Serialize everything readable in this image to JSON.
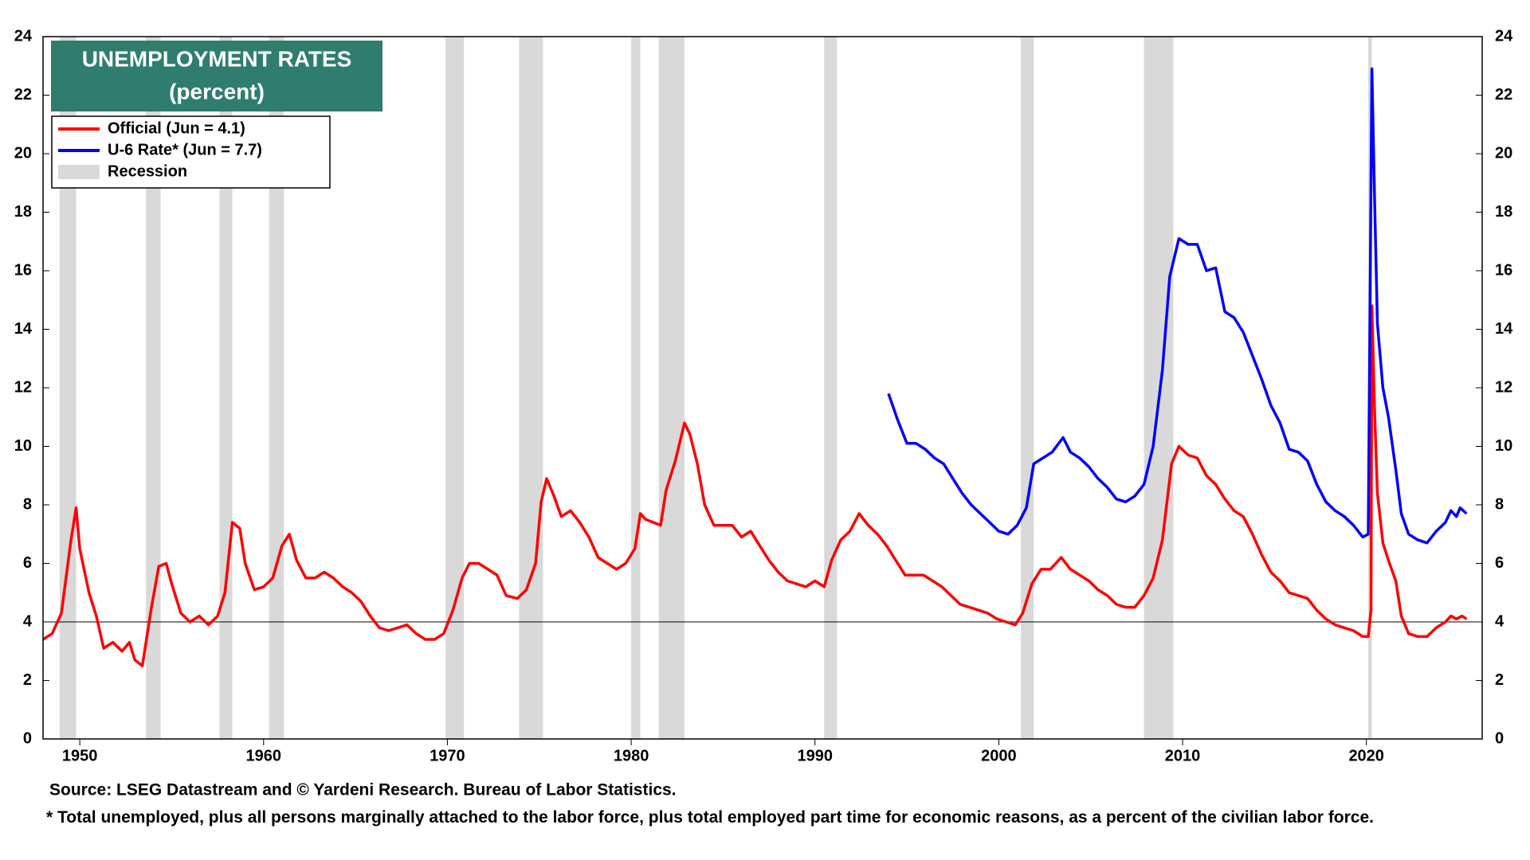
{
  "chart_data": {
    "type": "line",
    "title": "UNEMPLOYMENT RATES",
    "subtitle": "(percent)",
    "source": "Source: LSEG Datastream and © Yardeni Research. Bureau of Labor Statistics.",
    "footnote": "* Total unemployed, plus all persons marginally attached to the labor force, plus total employed part time for economic reasons, as a percent of the civilian labor force.",
    "xlim": [
      1948,
      2026.3
    ],
    "xticks": [
      1950,
      1960,
      1970,
      1980,
      1990,
      2000,
      2010,
      2020
    ],
    "ylim": [
      0,
      24
    ],
    "yticks": [
      0,
      2,
      4,
      6,
      8,
      10,
      12,
      14,
      16,
      18,
      20,
      22,
      24
    ],
    "reference_line": 4,
    "recession_label": "Recession",
    "recession_color": "#d9d9d9",
    "recessions": [
      [
        1948.9,
        1949.8
      ],
      [
        1953.6,
        1954.4
      ],
      [
        1957.6,
        1958.3
      ],
      [
        1960.3,
        1961.1
      ],
      [
        1969.9,
        1970.9
      ],
      [
        1973.9,
        1975.2
      ],
      [
        1980.0,
        1980.5
      ],
      [
        1981.5,
        1982.9
      ],
      [
        1990.5,
        1991.2
      ],
      [
        2001.2,
        2001.9
      ],
      [
        2007.9,
        2009.5
      ],
      [
        2020.1,
        2020.3
      ]
    ],
    "series": [
      {
        "name": "Official (Jun = 4.1)",
        "color": "#ff0000",
        "x": [
          1948.0,
          1948.5,
          1949.0,
          1949.5,
          1949.8,
          1950.0,
          1950.5,
          1950.9,
          1951.3,
          1951.8,
          1952.3,
          1952.7,
          1953.0,
          1953.4,
          1953.9,
          1954.3,
          1954.7,
          1955.0,
          1955.5,
          1956.0,
          1956.5,
          1957.0,
          1957.5,
          1957.9,
          1958.3,
          1958.7,
          1959.0,
          1959.5,
          1960.0,
          1960.5,
          1961.0,
          1961.4,
          1961.8,
          1962.3,
          1962.8,
          1963.3,
          1963.8,
          1964.3,
          1964.8,
          1965.3,
          1965.8,
          1966.3,
          1966.8,
          1967.3,
          1967.8,
          1968.3,
          1968.8,
          1969.3,
          1969.8,
          1970.3,
          1970.8,
          1971.2,
          1971.7,
          1972.2,
          1972.7,
          1973.2,
          1973.8,
          1974.3,
          1974.8,
          1975.1,
          1975.4,
          1975.8,
          1976.2,
          1976.7,
          1977.2,
          1977.7,
          1978.2,
          1978.7,
          1979.2,
          1979.7,
          1980.2,
          1980.5,
          1980.8,
          1981.2,
          1981.6,
          1981.9,
          1982.4,
          1982.9,
          1983.2,
          1983.6,
          1984.0,
          1984.5,
          1985.0,
          1985.5,
          1986.0,
          1986.5,
          1987.0,
          1987.5,
          1988.0,
          1988.5,
          1989.0,
          1989.5,
          1990.0,
          1990.5,
          1990.9,
          1991.4,
          1991.9,
          1992.4,
          1992.9,
          1993.4,
          1993.9,
          1994.4,
          1994.9,
          1995.4,
          1995.9,
          1996.4,
          1996.9,
          1997.4,
          1997.9,
          1998.4,
          1998.9,
          1999.4,
          1999.9,
          2000.4,
          2000.9,
          2001.3,
          2001.8,
          2002.3,
          2002.8,
          2003.4,
          2003.9,
          2004.4,
          2004.9,
          2005.4,
          2005.9,
          2006.4,
          2006.9,
          2007.4,
          2007.9,
          2008.4,
          2008.9,
          2009.4,
          2009.8,
          2010.3,
          2010.8,
          2011.3,
          2011.8,
          2012.3,
          2012.8,
          2013.3,
          2013.8,
          2014.3,
          2014.8,
          2015.3,
          2015.8,
          2016.3,
          2016.8,
          2017.3,
          2017.8,
          2018.3,
          2018.8,
          2019.3,
          2019.8,
          2020.1,
          2020.25,
          2020.3,
          2020.45,
          2020.6,
          2020.9,
          2021.2,
          2021.6,
          2021.9,
          2022.3,
          2022.8,
          2023.3,
          2023.8,
          2024.3,
          2024.6,
          2024.9,
          2025.2,
          2025.45
        ],
        "values": [
          3.4,
          3.6,
          4.3,
          6.7,
          7.9,
          6.5,
          5.0,
          4.2,
          3.1,
          3.3,
          3.0,
          3.3,
          2.7,
          2.5,
          4.5,
          5.9,
          6.0,
          5.3,
          4.3,
          4.0,
          4.2,
          3.9,
          4.2,
          5.0,
          7.4,
          7.2,
          6.0,
          5.1,
          5.2,
          5.5,
          6.6,
          7.0,
          6.1,
          5.5,
          5.5,
          5.7,
          5.5,
          5.2,
          5.0,
          4.7,
          4.2,
          3.8,
          3.7,
          3.8,
          3.9,
          3.6,
          3.4,
          3.4,
          3.6,
          4.4,
          5.5,
          6.0,
          6.0,
          5.8,
          5.6,
          4.9,
          4.8,
          5.1,
          6.0,
          8.1,
          8.9,
          8.3,
          7.6,
          7.8,
          7.4,
          6.9,
          6.2,
          6.0,
          5.8,
          6.0,
          6.5,
          7.7,
          7.5,
          7.4,
          7.3,
          8.5,
          9.5,
          10.8,
          10.4,
          9.4,
          8.0,
          7.3,
          7.3,
          7.3,
          6.9,
          7.1,
          6.6,
          6.1,
          5.7,
          5.4,
          5.3,
          5.2,
          5.4,
          5.2,
          6.1,
          6.8,
          7.1,
          7.7,
          7.3,
          7.0,
          6.6,
          6.1,
          5.6,
          5.6,
          5.6,
          5.4,
          5.2,
          4.9,
          4.6,
          4.5,
          4.4,
          4.3,
          4.1,
          4.0,
          3.9,
          4.3,
          5.3,
          5.8,
          5.8,
          6.2,
          5.8,
          5.6,
          5.4,
          5.1,
          4.9,
          4.6,
          4.5,
          4.5,
          4.9,
          5.5,
          6.8,
          9.4,
          10.0,
          9.7,
          9.6,
          9.0,
          8.7,
          8.2,
          7.8,
          7.6,
          7.0,
          6.3,
          5.7,
          5.4,
          5.0,
          4.9,
          4.8,
          4.4,
          4.1,
          3.9,
          3.8,
          3.7,
          3.5,
          3.5,
          4.4,
          14.8,
          11.1,
          8.4,
          6.7,
          6.1,
          5.4,
          4.2,
          3.6,
          3.5,
          3.5,
          3.8,
          4.0,
          4.2,
          4.1,
          4.2,
          4.1
        ]
      },
      {
        "name": "U-6 Rate* (Jun = 7.7)",
        "color": "#0000ff",
        "x": [
          1994.0,
          1994.5,
          1995.0,
          1995.5,
          1996.0,
          1996.5,
          1997.0,
          1997.5,
          1998.0,
          1998.5,
          1999.0,
          1999.5,
          2000.0,
          2000.5,
          2001.0,
          2001.5,
          2001.9,
          2002.4,
          2002.9,
          2003.5,
          2003.9,
          2004.4,
          2004.9,
          2005.4,
          2005.9,
          2006.4,
          2006.9,
          2007.4,
          2007.9,
          2008.4,
          2008.9,
          2009.3,
          2009.8,
          2010.3,
          2010.8,
          2011.3,
          2011.8,
          2012.3,
          2012.8,
          2013.3,
          2013.8,
          2014.3,
          2014.8,
          2015.3,
          2015.8,
          2016.3,
          2016.8,
          2017.3,
          2017.8,
          2018.3,
          2018.8,
          2019.3,
          2019.8,
          2020.1,
          2020.3,
          2020.45,
          2020.6,
          2020.9,
          2021.2,
          2021.6,
          2021.9,
          2022.3,
          2022.8,
          2023.3,
          2023.8,
          2024.3,
          2024.6,
          2024.9,
          2025.1,
          2025.45
        ],
        "values": [
          11.8,
          10.9,
          10.1,
          10.1,
          9.9,
          9.6,
          9.4,
          8.9,
          8.4,
          8.0,
          7.7,
          7.4,
          7.1,
          7.0,
          7.3,
          7.9,
          9.4,
          9.6,
          9.8,
          10.3,
          9.8,
          9.6,
          9.3,
          8.9,
          8.6,
          8.2,
          8.1,
          8.3,
          8.7,
          10.0,
          12.6,
          15.8,
          17.1,
          16.9,
          16.9,
          16.0,
          16.1,
          14.6,
          14.4,
          13.9,
          13.1,
          12.3,
          11.4,
          10.8,
          9.9,
          9.8,
          9.5,
          8.7,
          8.1,
          7.8,
          7.6,
          7.3,
          6.9,
          7.0,
          22.9,
          18.3,
          14.2,
          12.0,
          11.0,
          9.2,
          7.7,
          7.0,
          6.8,
          6.7,
          7.1,
          7.4,
          7.8,
          7.6,
          7.9,
          7.7
        ]
      }
    ]
  }
}
